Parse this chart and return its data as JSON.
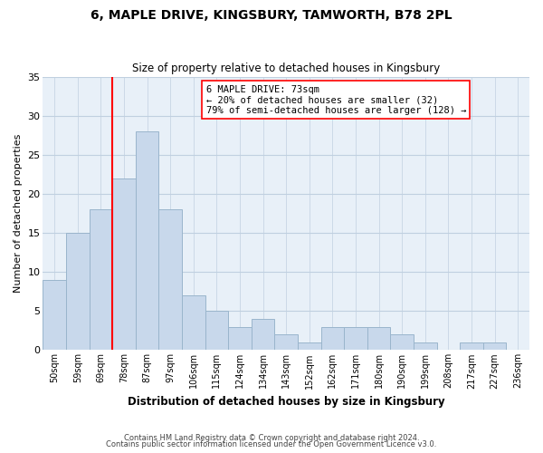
{
  "title": "6, MAPLE DRIVE, KINGSBURY, TAMWORTH, B78 2PL",
  "subtitle": "Size of property relative to detached houses in Kingsbury",
  "xlabel": "Distribution of detached houses by size in Kingsbury",
  "ylabel": "Number of detached properties",
  "bar_labels": [
    "50sqm",
    "59sqm",
    "69sqm",
    "78sqm",
    "87sqm",
    "97sqm",
    "106sqm",
    "115sqm",
    "124sqm",
    "134sqm",
    "143sqm",
    "152sqm",
    "162sqm",
    "171sqm",
    "180sqm",
    "190sqm",
    "199sqm",
    "208sqm",
    "217sqm",
    "227sqm",
    "236sqm"
  ],
  "bar_values": [
    9,
    15,
    18,
    22,
    28,
    18,
    7,
    5,
    3,
    4,
    2,
    1,
    3,
    3,
    3,
    2,
    1,
    0,
    1,
    1,
    0
  ],
  "bar_color": "#c8d8eb",
  "bar_edgecolor": "#9ab5cc",
  "redline_x": 2.5,
  "annotation_title": "6 MAPLE DRIVE: 73sqm",
  "annotation_line1": "← 20% of detached houses are smaller (32)",
  "annotation_line2": "79% of semi-detached houses are larger (128) →",
  "ylim": [
    0,
    35
  ],
  "yticks": [
    0,
    5,
    10,
    15,
    20,
    25,
    30,
    35
  ],
  "footer1": "Contains HM Land Registry data © Crown copyright and database right 2024.",
  "footer2": "Contains public sector information licensed under the Open Government Licence v3.0.",
  "bg_color": "#ffffff",
  "plot_bg_color": "#e8f0f8",
  "grid_color": "#c0d0e0"
}
